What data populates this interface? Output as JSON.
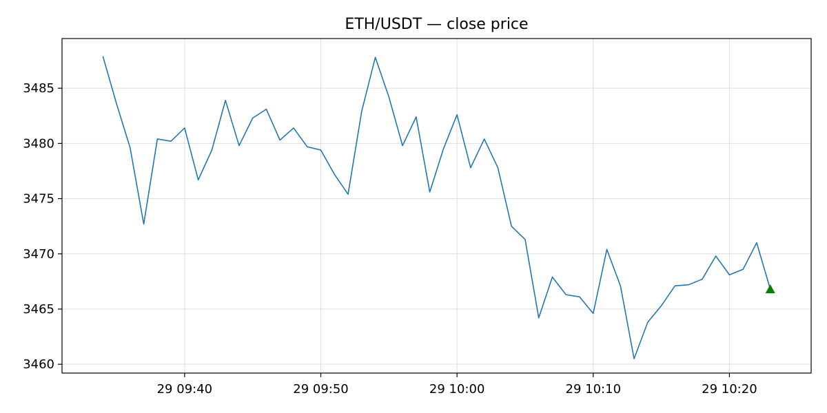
{
  "chart_data": {
    "type": "line",
    "title": "ETH/USDT — close price",
    "xlabel": "",
    "ylabel": "",
    "x_start": "09:34",
    "x_step_minutes": 1,
    "xlim": [
      "09:31",
      "10:26"
    ],
    "ylim": [
      3459.2,
      3489.5
    ],
    "yticks": [
      3460,
      3465,
      3470,
      3475,
      3480,
      3485
    ],
    "xticks": [
      {
        "t": "09:40",
        "label": "29 09:40"
      },
      {
        "t": "09:50",
        "label": "29 09:50"
      },
      {
        "t": "10:00",
        "label": "29 10:00"
      },
      {
        "t": "10:10",
        "label": "29 10:10"
      },
      {
        "t": "10:20",
        "label": "29 10:20"
      }
    ],
    "grid": true,
    "series": [
      {
        "color": "#1f77b4",
        "values": [
          3487.9,
          3483.6,
          3479.6,
          3472.7,
          3480.4,
          3480.2,
          3481.4,
          3476.7,
          3479.4,
          3483.9,
          3479.8,
          3482.3,
          3483.1,
          3480.3,
          3481.4,
          3479.7,
          3479.4,
          3477.2,
          3475.4,
          3482.9,
          3487.8,
          3484.2,
          3479.8,
          3482.4,
          3475.6,
          3479.5,
          3482.6,
          3477.8,
          3480.4,
          3477.8,
          3472.5,
          3471.3,
          3464.2,
          3467.9,
          3466.3,
          3466.1,
          3464.6,
          3470.4,
          3467.1,
          3460.5,
          3463.8,
          3465.3,
          3467.1,
          3467.2,
          3467.7,
          3469.8,
          3468.1,
          3468.6,
          3471.0,
          3466.8
        ]
      }
    ],
    "marker": {
      "t": "10:23",
      "value": 3466.8,
      "shape": "triangle-up",
      "color": "#008000"
    }
  }
}
